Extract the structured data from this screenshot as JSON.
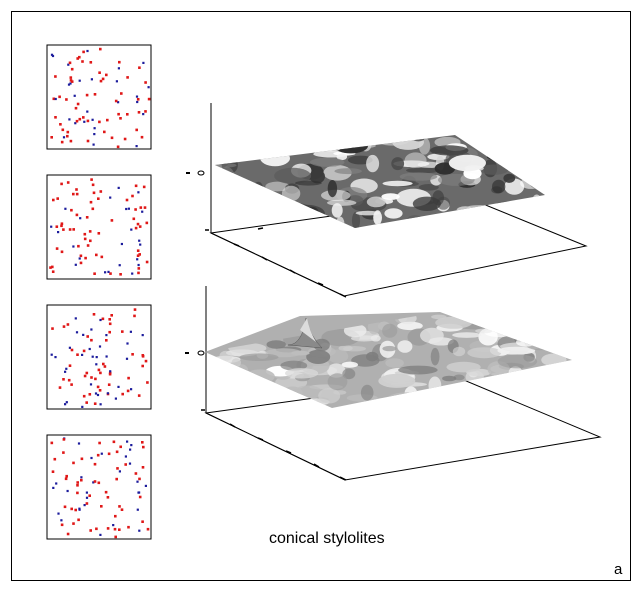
{
  "figure": {
    "caption": "conical stylolites",
    "panel_label": "a"
  },
  "point_maps": {
    "count": 4,
    "point_colors": {
      "red": "#e01818",
      "blue": "#1c1c9c"
    }
  },
  "surfaces": {
    "count": 2,
    "upper_surface_style": "smooth dark mottled plane",
    "lower_surface_style": "rough bright surface with spike"
  }
}
